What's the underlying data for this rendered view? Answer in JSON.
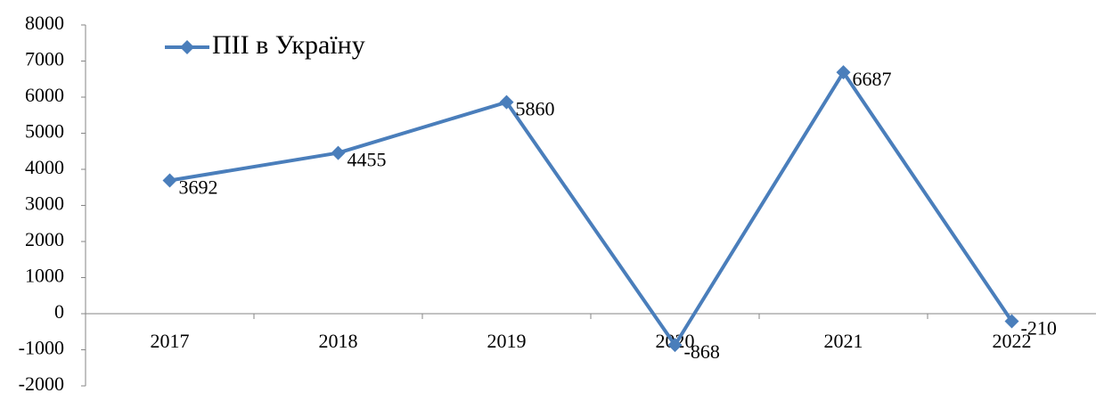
{
  "chart_data": {
    "type": "line",
    "categories": [
      "2017",
      "2018",
      "2019",
      "2020",
      "2021",
      "2022"
    ],
    "series": [
      {
        "name": "ПІІ в Україну",
        "color": "#4a7ebb",
        "values": [
          3692,
          4455,
          5860,
          -868,
          6687,
          -210
        ]
      }
    ],
    "ylim": [
      -2000,
      8000
    ],
    "yticks": [
      -2000,
      -1000,
      0,
      1000,
      2000,
      3000,
      4000,
      5000,
      6000,
      7000,
      8000
    ],
    "grid": false,
    "legend": "top-left"
  }
}
